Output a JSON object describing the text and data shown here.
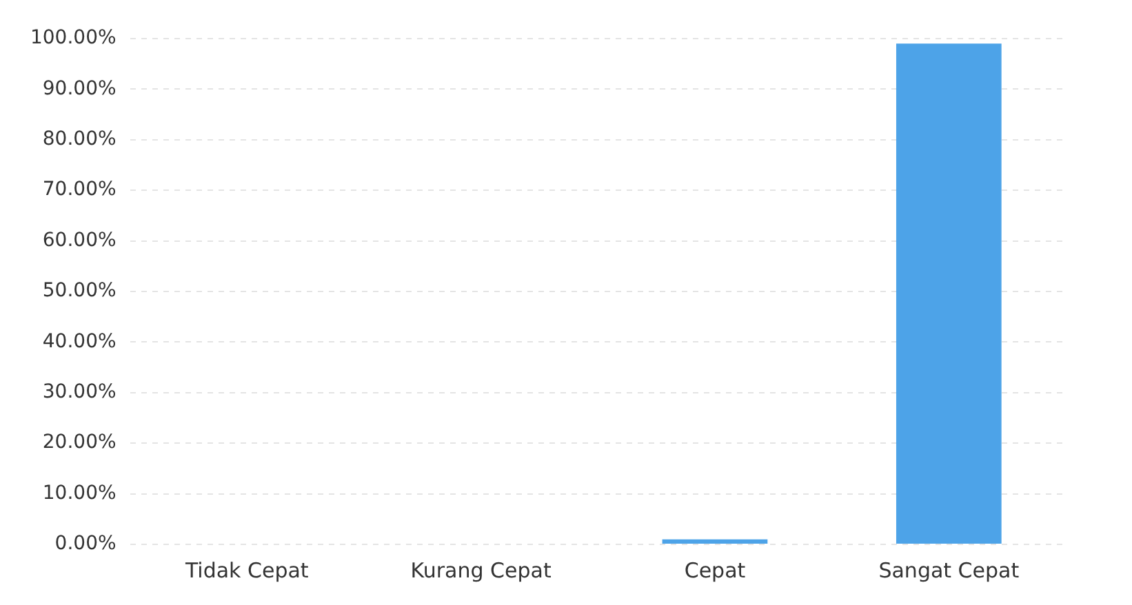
{
  "chart_data": {
    "type": "bar",
    "categories": [
      "Tidak Cepat",
      "Kurang Cepat",
      "Cepat",
      "Sangat Cepat"
    ],
    "values": [
      0,
      0,
      1,
      99
    ],
    "color": "#4da3e8",
    "ylim": [
      0,
      100
    ],
    "yticks": [
      {
        "value": 0,
        "label": "0.00%"
      },
      {
        "value": 10,
        "label": "10.00%"
      },
      {
        "value": 20,
        "label": "20.00%"
      },
      {
        "value": 30,
        "label": "30.00%"
      },
      {
        "value": 40,
        "label": "40.00%"
      },
      {
        "value": 50,
        "label": "50.00%"
      },
      {
        "value": 60,
        "label": "60.00%"
      },
      {
        "value": 70,
        "label": "70.00%"
      },
      {
        "value": 80,
        "label": "80.00%"
      },
      {
        "value": 90,
        "label": "90.00%"
      },
      {
        "value": 100,
        "label": "100.00%"
      }
    ],
    "grid": true
  }
}
